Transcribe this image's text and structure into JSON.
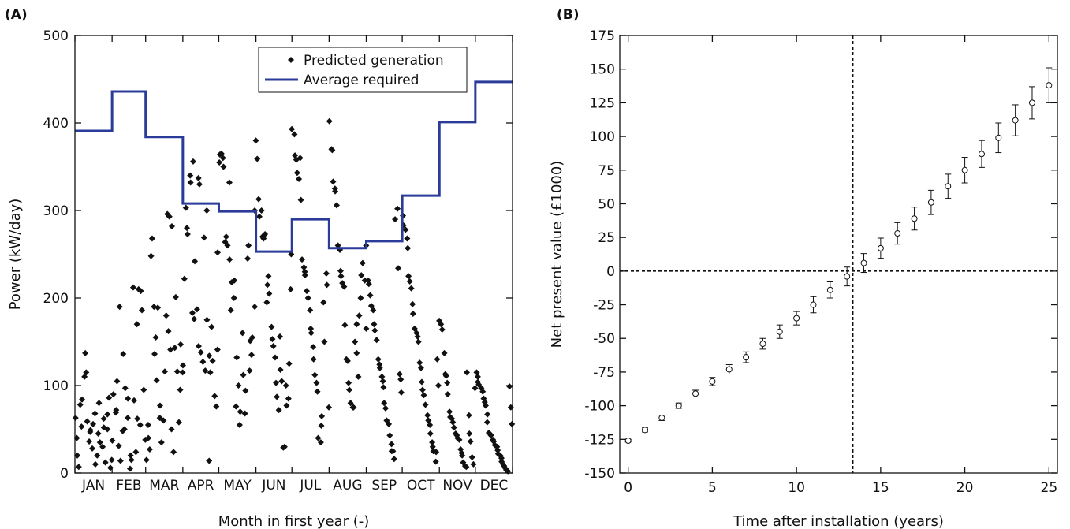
{
  "colors": {
    "required": "#2a3b9a",
    "points": "#111111",
    "axis": "#111111",
    "background": "#ffffff"
  },
  "chart_data": [
    {
      "panel": "(A)",
      "type": "scatter",
      "xlabel": "Month in first year (-)",
      "ylabel": "Power (kW/day)",
      "ylim": [
        0,
        500
      ],
      "xlim": [
        0,
        365
      ],
      "y_ticks": [
        "0",
        "100",
        "200",
        "300",
        "400",
        "500"
      ],
      "months": [
        "JAN",
        "FEB",
        "MAR",
        "APR",
        "MAY",
        "JUN",
        "JUL",
        "AUG",
        "SEP",
        "OCT",
        "NOV",
        "DEC"
      ],
      "legend": {
        "position": "top-right",
        "generation": "Predicted generation",
        "required": "Average required"
      },
      "average_required": [
        {
          "month": "JAN",
          "value": 391
        },
        {
          "month": "FEB",
          "value": 436
        },
        {
          "month": "MAR",
          "value": 384
        },
        {
          "month": "APR",
          "value": 308
        },
        {
          "month": "MAY",
          "value": 299
        },
        {
          "month": "JUN",
          "value": 253
        },
        {
          "month": "JUL",
          "value": 290
        },
        {
          "month": "AUG",
          "value": 257
        },
        {
          "month": "SEP",
          "value": 265
        },
        {
          "month": "OCT",
          "value": 317
        },
        {
          "month": "NOV",
          "value": 401
        },
        {
          "month": "DEC",
          "value": 447
        }
      ],
      "predicted_generation": [
        {
          "month": "JAN",
          "values": [
            63,
            40,
            20,
            7,
            78,
            53,
            84,
            110,
            137,
            115,
            59,
            36,
            47,
            49,
            28,
            56,
            68,
            10,
            20,
            45,
            80,
            35,
            30,
            52,
            62,
            12,
            67,
            50,
            86,
            6,
            15
          ]
        },
        {
          "month": "FEB",
          "values": [
            37,
            90,
            69,
            72,
            105,
            31,
            190,
            14,
            48,
            136,
            50,
            97,
            63,
            85,
            5,
            20,
            15,
            212,
            83,
            24,
            170,
            62,
            210,
            55,
            208,
            186,
            95,
            38
          ]
        },
        {
          "month": "MAR",
          "values": [
            15,
            55,
            40,
            27,
            248,
            268,
            190,
            136,
            155,
            106,
            189,
            63,
            77,
            35,
            60,
            116,
            180,
            296,
            162,
            293,
            141,
            50,
            282,
            24,
            143,
            201,
            116,
            58,
            95,
            147,
            123
          ]
        },
        {
          "month": "APR",
          "values": [
            115,
            222,
            303,
            280,
            273,
            340,
            332,
            183,
            356,
            176,
            242,
            187,
            337,
            145,
            330,
            138,
            127,
            269,
            117,
            300,
            175,
            14,
            134,
            115,
            167,
            128,
            88,
            76,
            141,
            252
          ]
        },
        {
          "month": "MAY",
          "values": [
            355,
            364,
            365,
            360,
            350,
            264,
            270,
            260,
            332,
            244,
            186,
            218,
            200,
            220,
            76,
            132,
            100,
            55,
            70,
            160,
            112,
            68,
            94,
            245,
            260,
            117,
            151,
            135,
            155,
            190,
            300
          ]
        },
        {
          "month": "JUN",
          "values": [
            380,
            359,
            313,
            293,
            300,
            270,
            268,
            273,
            195,
            215,
            225,
            205,
            167,
            153,
            145,
            132,
            103,
            87,
            72,
            156,
            118,
            105,
            29,
            30,
            100,
            77,
            85,
            125,
            210,
            250
          ]
        },
        {
          "month": "JUL",
          "values": [
            393,
            387,
            363,
            358,
            343,
            336,
            360,
            312,
            244,
            235,
            230,
            226,
            208,
            200,
            186,
            165,
            160,
            144,
            130,
            112,
            103,
            93,
            40,
            35,
            54,
            65,
            195,
            150,
            228,
            215,
            75
          ]
        },
        {
          "month": "AUG",
          "values": [
            402,
            370,
            369,
            333,
            325,
            322,
            306,
            260,
            255,
            231,
            225,
            217,
            213,
            169,
            130,
            128,
            103,
            95,
            80,
            75,
            75,
            150,
            170,
            137,
            110,
            180,
            200,
            226,
            240,
            220,
            165
          ]
        },
        {
          "month": "SEP",
          "values": [
            260,
            220,
            216,
            203,
            191,
            186,
            170,
            163,
            152,
            130,
            124,
            120,
            110,
            105,
            98,
            80,
            74,
            60,
            56,
            43,
            33,
            25,
            25,
            16,
            290,
            302,
            234,
            113,
            107,
            92
          ]
        },
        {
          "month": "OCT",
          "values": [
            294,
            283,
            278,
            268,
            257,
            225,
            219,
            211,
            193,
            182,
            165,
            160,
            156,
            150,
            126,
            120,
            104,
            95,
            89,
            78,
            66,
            60,
            55,
            45,
            35,
            30,
            25,
            13,
            24,
            130,
            100
          ]
        },
        {
          "month": "NOV",
          "values": [
            174,
            170,
            164,
            137,
            113,
            111,
            103,
            90,
            70,
            64,
            62,
            58,
            52,
            45,
            43,
            40,
            38,
            27,
            23,
            20,
            12,
            8,
            7,
            115,
            66,
            45,
            36,
            18,
            10,
            97
          ]
        },
        {
          "month": "DEC",
          "values": [
            115,
            110,
            104,
            101,
            97,
            93,
            85,
            81,
            77,
            67,
            58,
            46,
            44,
            43,
            38,
            36,
            32,
            30,
            26,
            22,
            20,
            17,
            13,
            10,
            8,
            5,
            3,
            2,
            99,
            75,
            56
          ]
        }
      ]
    },
    {
      "panel": "(B)",
      "type": "scatter",
      "xlabel": "Time after installation (years)",
      "ylabel": "Net present value (£1000)",
      "xlim": [
        -0.5,
        25.5
      ],
      "ylim": [
        -150,
        175
      ],
      "x_ticks": [
        "0",
        "5",
        "10",
        "15",
        "20",
        "25"
      ],
      "y_ticks": [
        "-150",
        "-125",
        "-100",
        "-75",
        "-50",
        "-25",
        "0",
        "25",
        "50",
        "75",
        "100",
        "125",
        "150",
        "175"
      ],
      "zero_line_y": 0,
      "breakeven_x": 13.35,
      "points": [
        {
          "x": 0,
          "y": -126,
          "err": 1
        },
        {
          "x": 1,
          "y": -118,
          "err": 1.5
        },
        {
          "x": 2,
          "y": -109,
          "err": 2
        },
        {
          "x": 3,
          "y": -100,
          "err": 2
        },
        {
          "x": 4,
          "y": -91,
          "err": 2.5
        },
        {
          "x": 5,
          "y": -82,
          "err": 3
        },
        {
          "x": 6,
          "y": -73,
          "err": 3.5
        },
        {
          "x": 7,
          "y": -64,
          "err": 4
        },
        {
          "x": 8,
          "y": -54,
          "err": 4
        },
        {
          "x": 9,
          "y": -45,
          "err": 5
        },
        {
          "x": 10,
          "y": -35,
          "err": 5
        },
        {
          "x": 11,
          "y": -25,
          "err": 6
        },
        {
          "x": 12,
          "y": -14,
          "err": 6
        },
        {
          "x": 13,
          "y": -4,
          "err": 7
        },
        {
          "x": 14,
          "y": 6,
          "err": 7
        },
        {
          "x": 15,
          "y": 17,
          "err": 7.5
        },
        {
          "x": 16,
          "y": 28,
          "err": 8
        },
        {
          "x": 17,
          "y": 39,
          "err": 8.5
        },
        {
          "x": 18,
          "y": 51,
          "err": 9
        },
        {
          "x": 19,
          "y": 63,
          "err": 9
        },
        {
          "x": 20,
          "y": 75,
          "err": 9.5
        },
        {
          "x": 21,
          "y": 87,
          "err": 10
        },
        {
          "x": 22,
          "y": 99,
          "err": 11
        },
        {
          "x": 23,
          "y": 112,
          "err": 11.5
        },
        {
          "x": 24,
          "y": 125,
          "err": 12
        },
        {
          "x": 25,
          "y": 138,
          "err": 13
        }
      ]
    }
  ]
}
